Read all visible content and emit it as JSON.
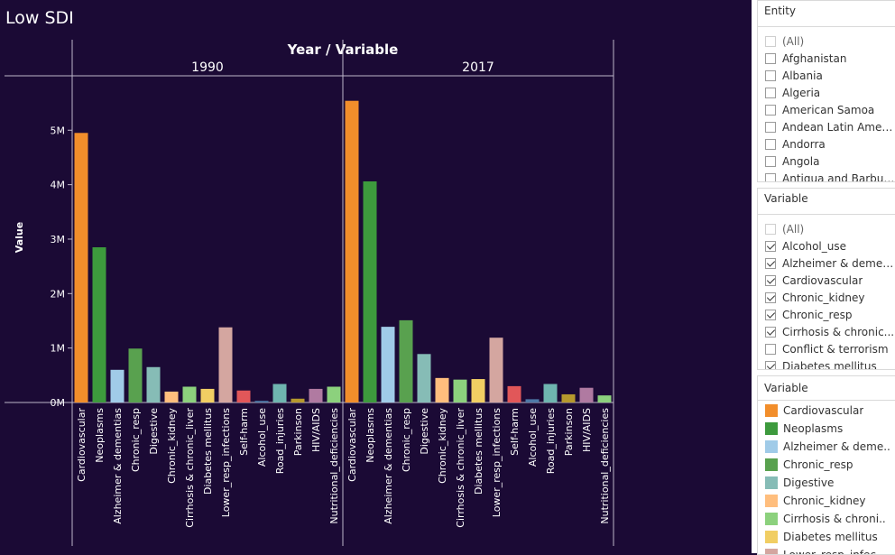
{
  "page": {
    "title": "Low SDI"
  },
  "chart_data": {
    "type": "bar",
    "header": "Year / Variable",
    "ylabel": "Value",
    "ylim": [
      0,
      5800000
    ],
    "yticks": [
      {
        "value": 0,
        "label": "0M"
      },
      {
        "value": 1000000,
        "label": "1M"
      },
      {
        "value": 2000000,
        "label": "2M"
      },
      {
        "value": 3000000,
        "label": "3M"
      },
      {
        "value": 4000000,
        "label": "4M"
      },
      {
        "value": 5000000,
        "label": "5M"
      }
    ],
    "categories": [
      "Cardiovascular",
      "Neoplasms",
      "Alzheimer & dementias",
      "Chronic_resp",
      "Digestive",
      "Chronic_kidney",
      "Cirrhosis & chronic_liver",
      "Diabetes mellitus",
      "Lower_resp_infections",
      "Self-harm",
      "Alcohol_use",
      "Road_injuries",
      "Parkinson",
      "HIV/AIDS",
      "Nutritional_deficiencies"
    ],
    "colors": [
      "#f28e2b",
      "#3d9a3d",
      "#a0cbe8",
      "#59a14f",
      "#86bcb6",
      "#ffbe7d",
      "#8cd17d",
      "#f1ce63",
      "#d4a6a0",
      "#e15759",
      "#4e79a7",
      "#6fb5b0",
      "#b6992d",
      "#b07aa1",
      "#8cd17d"
    ],
    "series": [
      {
        "name": "1990",
        "values": [
          4950000,
          2850000,
          600000,
          990000,
          650000,
          200000,
          290000,
          250000,
          1380000,
          220000,
          30000,
          340000,
          70000,
          250000,
          290000
        ]
      },
      {
        "name": "2017",
        "values": [
          5540000,
          4060000,
          1390000,
          1510000,
          890000,
          450000,
          420000,
          430000,
          1190000,
          300000,
          60000,
          340000,
          150000,
          270000,
          130000
        ]
      }
    ]
  },
  "filters": {
    "entity": {
      "title": "Entity",
      "items": [
        {
          "label": "(All)",
          "checked": false
        },
        {
          "label": "Afghanistan",
          "checked": false
        },
        {
          "label": "Albania",
          "checked": false
        },
        {
          "label": "Algeria",
          "checked": false
        },
        {
          "label": "American Samoa",
          "checked": false
        },
        {
          "label": "Andean Latin Ameri...",
          "checked": false
        },
        {
          "label": "Andorra",
          "checked": false
        },
        {
          "label": "Angola",
          "checked": false
        },
        {
          "label": "Antigua and Barbuda",
          "checked": false
        }
      ]
    },
    "variable": {
      "title": "Variable",
      "items": [
        {
          "label": "(All)",
          "checked": false
        },
        {
          "label": "Alcohol_use",
          "checked": true
        },
        {
          "label": "Alzheimer & demen...",
          "checked": true
        },
        {
          "label": "Cardiovascular",
          "checked": true
        },
        {
          "label": "Chronic_kidney",
          "checked": true
        },
        {
          "label": "Chronic_resp",
          "checked": true
        },
        {
          "label": "Cirrhosis & chronic...",
          "checked": true
        },
        {
          "label": "Conflict & terrorism",
          "checked": false
        },
        {
          "label": "Diabetes mellitus",
          "checked": true
        }
      ]
    }
  },
  "legend": {
    "title": "Variable",
    "items": [
      {
        "label": "Cardiovascular",
        "color": "#f28e2b"
      },
      {
        "label": "Neoplasms",
        "color": "#3d9a3d"
      },
      {
        "label": "Alzheimer & deme..",
        "color": "#a0cbe8"
      },
      {
        "label": "Chronic_resp",
        "color": "#59a14f"
      },
      {
        "label": "Digestive",
        "color": "#86bcb6"
      },
      {
        "label": "Chronic_kidney",
        "color": "#ffbe7d"
      },
      {
        "label": "Cirrhosis & chroni..",
        "color": "#8cd17d"
      },
      {
        "label": "Diabetes mellitus",
        "color": "#f1ce63"
      },
      {
        "label": "Lower_resp_infec..",
        "color": "#d4a6a0"
      }
    ]
  }
}
